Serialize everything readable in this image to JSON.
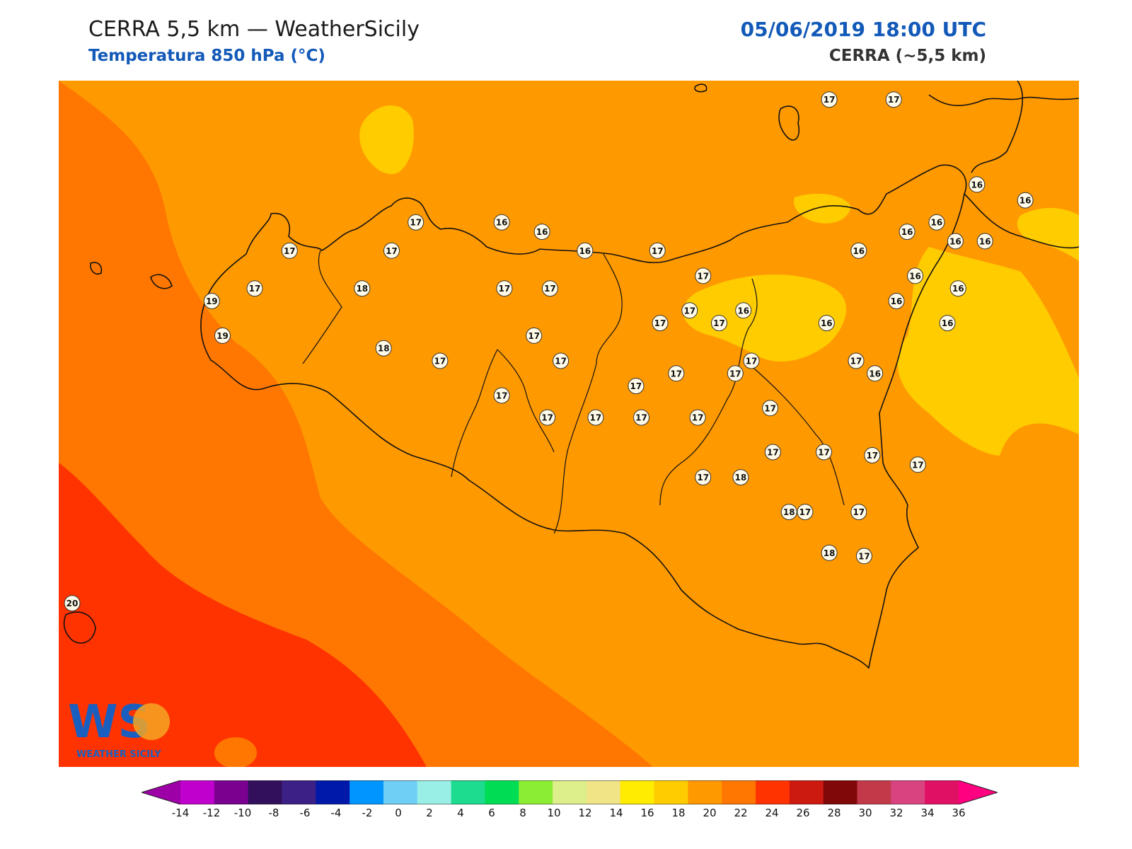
{
  "header": {
    "title": "CERRA 5,5 km — WeatherSicily",
    "subtitle": "Temperatura 850 hPa (°C)",
    "datetime": "05/06/2019 18:00 UTC",
    "model": "CERRA (~5,5 km)"
  },
  "logo": {
    "text": "WEATHER SICILY",
    "mark": "WS"
  },
  "colors": {
    "fill_14_16": "#ffcc00",
    "fill_16_18": "#ff9900",
    "fill_18_20": "#ff7700",
    "fill_20_22": "#ff3300",
    "header_blue": "#1259b8"
  },
  "colorbar": {
    "colors": [
      "#9c00a6",
      "#c000cc",
      "#7a0090",
      "#33105c",
      "#3c2085",
      "#0019a8",
      "#0095ff",
      "#6fcff5",
      "#99efe6",
      "#1ddb8f",
      "#00dd55",
      "#8cee33",
      "#dcef8a",
      "#f0e486",
      "#ffec00",
      "#ffcc00",
      "#ff9900",
      "#ff7700",
      "#ff3300",
      "#cc1a10",
      "#800808",
      "#c23a4a",
      "#d94480",
      "#e01065",
      "#ff0080"
    ],
    "ticks": [
      "-14",
      "-12",
      "-10",
      "-8",
      "-6",
      "-4",
      "-2",
      "0",
      "2",
      "4",
      "6",
      "8",
      "10",
      "12",
      "14",
      "16",
      "18",
      "20",
      "22",
      "24",
      "26",
      "28",
      "30",
      "32",
      "34",
      "36"
    ]
  },
  "stations": [
    {
      "t": "17",
      "lon": 14.95,
      "lat": 38.49
    },
    {
      "t": "17",
      "lon": 15.19,
      "lat": 38.49
    },
    {
      "t": "17",
      "lon": 13.41,
      "lat": 38.1
    },
    {
      "t": "16",
      "lon": 13.73,
      "lat": 38.1
    },
    {
      "t": "16",
      "lon": 13.88,
      "lat": 38.07
    },
    {
      "t": "17",
      "lon": 12.94,
      "lat": 38.01
    },
    {
      "t": "17",
      "lon": 13.32,
      "lat": 38.01
    },
    {
      "t": "16",
      "lon": 14.04,
      "lat": 38.01
    },
    {
      "t": "17",
      "lon": 14.31,
      "lat": 38.01
    },
    {
      "t": "16",
      "lon": 15.06,
      "lat": 38.01
    },
    {
      "t": "16",
      "lon": 15.24,
      "lat": 38.07
    },
    {
      "t": "16",
      "lon": 15.35,
      "lat": 38.1
    },
    {
      "t": "16",
      "lon": 15.5,
      "lat": 38.22
    },
    {
      "t": "16",
      "lon": 15.68,
      "lat": 38.17
    },
    {
      "t": "16",
      "lon": 15.42,
      "lat": 38.04
    },
    {
      "t": "16",
      "lon": 15.53,
      "lat": 38.04
    },
    {
      "t": "17",
      "lon": 14.48,
      "lat": 37.93
    },
    {
      "t": "16",
      "lon": 15.27,
      "lat": 37.93
    },
    {
      "t": "16",
      "lon": 15.43,
      "lat": 37.89
    },
    {
      "t": "17",
      "lon": 12.81,
      "lat": 37.89
    },
    {
      "t": "18",
      "lon": 13.21,
      "lat": 37.89
    },
    {
      "t": "17",
      "lon": 13.74,
      "lat": 37.89
    },
    {
      "t": "17",
      "lon": 13.91,
      "lat": 37.89
    },
    {
      "t": "19",
      "lon": 12.65,
      "lat": 37.85
    },
    {
      "t": "16",
      "lon": 15.2,
      "lat": 37.85
    },
    {
      "t": "17",
      "lon": 14.43,
      "lat": 37.82
    },
    {
      "t": "16",
      "lon": 14.63,
      "lat": 37.82
    },
    {
      "t": "17",
      "lon": 14.32,
      "lat": 37.78
    },
    {
      "t": "17",
      "lon": 14.54,
      "lat": 37.78
    },
    {
      "t": "16",
      "lon": 14.94,
      "lat": 37.78
    },
    {
      "t": "16",
      "lon": 15.39,
      "lat": 37.78
    },
    {
      "t": "19",
      "lon": 12.69,
      "lat": 37.74
    },
    {
      "t": "17",
      "lon": 13.85,
      "lat": 37.74
    },
    {
      "t": "18",
      "lon": 13.29,
      "lat": 37.7
    },
    {
      "t": "17",
      "lon": 13.5,
      "lat": 37.66
    },
    {
      "t": "17",
      "lon": 13.95,
      "lat": 37.66
    },
    {
      "t": "17",
      "lon": 14.66,
      "lat": 37.66
    },
    {
      "t": "17",
      "lon": 15.05,
      "lat": 37.66
    },
    {
      "t": "17",
      "lon": 14.6,
      "lat": 37.62
    },
    {
      "t": "17",
      "lon": 14.38,
      "lat": 37.62
    },
    {
      "t": "16",
      "lon": 15.12,
      "lat": 37.62
    },
    {
      "t": "17",
      "lon": 14.23,
      "lat": 37.58
    },
    {
      "t": "17",
      "lon": 13.73,
      "lat": 37.55
    },
    {
      "t": "17",
      "lon": 14.73,
      "lat": 37.51
    },
    {
      "t": "17",
      "lon": 13.9,
      "lat": 37.48
    },
    {
      "t": "17",
      "lon": 14.08,
      "lat": 37.48
    },
    {
      "t": "17",
      "lon": 14.25,
      "lat": 37.48
    },
    {
      "t": "17",
      "lon": 14.46,
      "lat": 37.48
    },
    {
      "t": "17",
      "lon": 14.74,
      "lat": 37.37
    },
    {
      "t": "17",
      "lon": 14.93,
      "lat": 37.37
    },
    {
      "t": "17",
      "lon": 15.11,
      "lat": 37.36
    },
    {
      "t": "17",
      "lon": 15.28,
      "lat": 37.33
    },
    {
      "t": "17",
      "lon": 14.48,
      "lat": 37.29
    },
    {
      "t": "18",
      "lon": 14.62,
      "lat": 37.29
    },
    {
      "t": "18",
      "lon": 14.8,
      "lat": 37.18
    },
    {
      "t": "17",
      "lon": 14.86,
      "lat": 37.18
    },
    {
      "t": "17",
      "lon": 15.06,
      "lat": 37.18
    },
    {
      "t": "18",
      "lon": 14.95,
      "lat": 37.05
    },
    {
      "t": "17",
      "lon": 15.08,
      "lat": 37.04
    },
    {
      "t": "20",
      "lon": 12.13,
      "lat": 36.89
    }
  ]
}
